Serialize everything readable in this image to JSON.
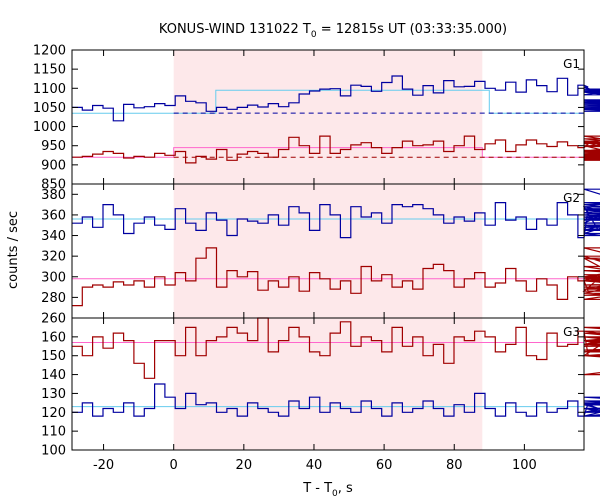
{
  "chart_data": {
    "type": "line",
    "title": "KONUS-WIND 131022 T",
    "title_sub": "0",
    "title_rest": " = 12815s UT (03:33:35.000)",
    "xlabel": "T - T",
    "xlabel_sub": "0",
    "xlabel_rest": ", s",
    "ylabel": "counts / sec",
    "xlim": [
      -29,
      117
    ],
    "xticks": [
      -20,
      0,
      20,
      40,
      60,
      80,
      100
    ],
    "highlight": {
      "x0": 0,
      "x1": 88,
      "color": "#fde8ea"
    },
    "colors": {
      "blue": "#0000a0",
      "red": "#a00000",
      "lightblue": "#66ccee",
      "pink": "#ff66cc"
    },
    "panels": [
      {
        "label": "G1",
        "ylim": [
          850,
          1200
        ],
        "yticks": [
          850,
          900,
          950,
          1000,
          1050,
          1100,
          1150,
          1200
        ],
        "series": [
          {
            "color": "blue",
            "x0": -29,
            "dx": 2.944,
            "values": [
              1050,
              1043,
              1055,
              1048,
              1015,
              1058,
              1049,
              1052,
              1060,
              1055,
              1080,
              1066,
              1062,
              1040,
              1050,
              1045,
              1050,
              1056,
              1051,
              1060,
              1052,
              1062,
              1085,
              1093,
              1098,
              1099,
              1080,
              1108,
              1105,
              1092,
              1115,
              1132,
              1098,
              1082,
              1107,
              1088,
              1120,
              1104,
              1105,
              1118,
              1100,
              1095,
              1116,
              1090,
              1122,
              1107,
              1091,
              1126,
              1082,
              1108,
              1103,
              1090,
              1083,
              1098,
              1094,
              1067,
              1062,
              1097,
              1092,
              1070,
              1056,
              1060,
              1055,
              1058,
              1050,
              1048,
              1052,
              1045,
              1048,
              1062,
              1052,
              1046,
              1060,
              1062,
              1056,
              1040,
              1050,
              1040,
              1045,
              1058,
              1070,
              1054,
              1050,
              1044,
              1040,
              1065
            ]
          },
          {
            "color": "red",
            "x0": -29,
            "dx": 2.944,
            "values": [
              920,
              922,
              928,
              935,
              930,
              918,
              922,
              920,
              930,
              925,
              935,
              905,
              922,
              915,
              940,
              912,
              928,
              935,
              930,
              920,
              940,
              972,
              950,
              930,
              975,
              930,
              940,
              952,
              958,
              945,
              930,
              945,
              962,
              950,
              952,
              962,
              935,
              950,
              975,
              940,
              955,
              965,
              935,
              952,
              965,
              955,
              948,
              960,
              950,
              945,
              955,
              962,
              950,
              928,
              960,
              922,
              958,
              948,
              975,
              936,
              968,
              938,
              925,
              930,
              922,
              928,
              935,
              922,
              928,
              925,
              932,
              915,
              925,
              918,
              922,
              935,
              924,
              930,
              912,
              928,
              935,
              920,
              930,
              915,
              935,
              925
            ]
          }
        ],
        "bg_lines": [
          {
            "color": "blue",
            "y": 1035
          },
          {
            "color": "red",
            "y": 920
          }
        ],
        "fit_lines": [
          {
            "color": "lightblue",
            "segments": [
              [
                -29,
                1035
              ],
              [
                12,
                1035
              ],
              [
                12,
                1095
              ],
              [
                90,
                1095
              ],
              [
                90,
                1035
              ],
              [
                117,
                1035
              ]
            ]
          },
          {
            "color": "pink",
            "segments": [
              [
                -29,
                920
              ],
              [
                0,
                920
              ],
              [
                0,
                945
              ],
              [
                88,
                945
              ],
              [
                88,
                920
              ],
              [
                117,
                920
              ]
            ]
          }
        ]
      },
      {
        "label": "G2",
        "ylim": [
          260,
          390
        ],
        "yticks": [
          260,
          280,
          300,
          320,
          340,
          360,
          380
        ],
        "series": [
          {
            "color": "blue",
            "x0": -29,
            "dx": 2.944,
            "values": [
              352,
              358,
              348,
              370,
              360,
              342,
              352,
              358,
              350,
              346,
              366,
              352,
              345,
              362,
              355,
              340,
              356,
              354,
              352,
              360,
              350,
              368,
              362,
              345,
              370,
              360,
              338,
              368,
              358,
              362,
              352,
              370,
              368,
              370,
              366,
              360,
              352,
              358,
              354,
              362,
              350,
              372,
              355,
              358,
              346,
              356,
              350,
              372,
              360,
              338,
              368,
              345,
              352,
              368,
              358,
              350,
              342,
              365,
              356,
              360,
              348,
              356,
              362,
              385,
              340,
              358,
              370,
              350,
              345,
              356,
              366,
              348,
              372,
              355,
              352,
              360,
              362,
              346,
              355,
              368,
              360,
              350,
              356,
              345,
              350,
              358
            ]
          },
          {
            "color": "red",
            "x0": -29,
            "dx": 2.944,
            "values": [
              272,
              290,
              292,
              290,
              295,
              292,
              296,
              290,
              300,
              292,
              304,
              296,
              318,
              328,
              290,
              306,
              300,
              305,
              287,
              296,
              290,
              300,
              286,
              304,
              298,
              288,
              296,
              284,
              310,
              296,
              302,
              290,
              296,
              288,
              308,
              312,
              306,
              290,
              298,
              304,
              290,
              294,
              308,
              296,
              286,
              298,
              292,
              278,
              300,
              296,
              286,
              298,
              300,
              288,
              296,
              318,
              284,
              300,
              310,
              296,
              328,
              300,
              320,
              278,
              300,
              318,
              302,
              296,
              282,
              296,
              306,
              292,
              298,
              288,
              302,
              292,
              296,
              300,
              286,
              290,
              298,
              296,
              302,
              290,
              296,
              306
            ]
          }
        ],
        "bg_lines": [],
        "fit_lines": [
          {
            "color": "lightblue",
            "segments": [
              [
                -29,
                356
              ],
              [
                117,
                356
              ]
            ]
          },
          {
            "color": "pink",
            "segments": [
              [
                -29,
                298
              ],
              [
                117,
                298
              ]
            ]
          }
        ]
      },
      {
        "label": "G3",
        "ylim": [
          100,
          170
        ],
        "yticks": [
          100,
          110,
          120,
          130,
          140,
          150,
          160,
          170
        ],
        "series": [
          {
            "color": "red",
            "x0": -29,
            "dx": 2.944,
            "values": [
              155,
              150,
              160,
              154,
              162,
              158,
              146,
              138,
              158,
              158,
              150,
              165,
              150,
              158,
              160,
              165,
              162,
              158,
              170,
              152,
              158,
              165,
              160,
              152,
              150,
              162,
              168,
              155,
              160,
              158,
              152,
              165,
              155,
              160,
              150,
              156,
              146,
              160,
              158,
              163,
              160,
              152,
              156,
              165,
              150,
              148,
              162,
              155,
              156,
              163,
              150,
              155,
              160,
              158,
              152,
              156,
              162,
              160,
              155,
              158,
              163,
              155,
              160,
              158,
              150,
              156,
              165,
              162,
              152,
              158,
              160,
              158,
              162,
              165,
              156,
              155,
              160,
              150,
              140,
              160,
              158,
              155,
              162,
              153,
              160,
              155
            ]
          },
          {
            "color": "blue",
            "x0": -29,
            "dx": 2.944,
            "values": [
              120,
              125,
              118,
              122,
              120,
              125,
              118,
              122,
              135,
              128,
              122,
              130,
              124,
              125,
              120,
              122,
              118,
              125,
              122,
              120,
              118,
              126,
              122,
              128,
              120,
              125,
              122,
              120,
              126,
              122,
              118,
              125,
              120,
              122,
              126,
              122,
              118,
              124,
              120,
              130,
              122,
              118,
              125,
              120,
              118,
              125,
              120,
              122,
              126,
              118,
              125,
              122,
              120,
              124,
              118,
              125,
              122,
              120,
              125,
              118,
              122,
              120,
              126,
              122,
              118,
              125,
              120,
              128,
              122,
              118,
              125,
              120,
              126,
              122,
              118,
              125,
              120,
              122,
              126,
              118,
              125,
              120,
              122,
              124,
              120,
              125
            ]
          }
        ],
        "bg_lines": [],
        "fit_lines": [
          {
            "color": "pink",
            "segments": [
              [
                -29,
                157
              ],
              [
                117,
                157
              ]
            ]
          },
          {
            "color": "lightblue",
            "segments": [
              [
                -29,
                123
              ],
              [
                117,
                123
              ]
            ]
          }
        ]
      }
    ]
  }
}
